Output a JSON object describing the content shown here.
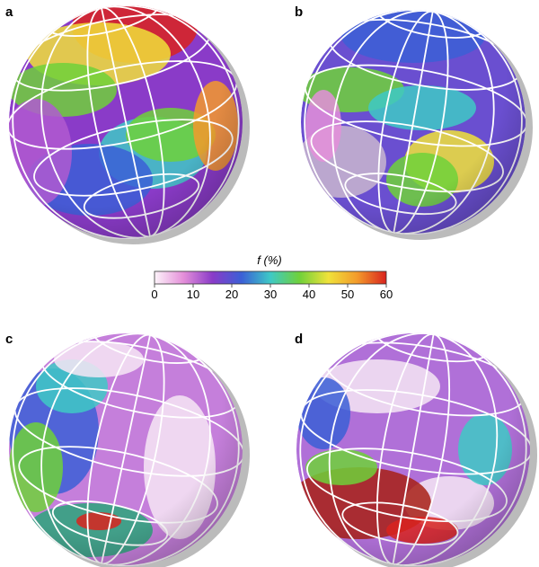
{
  "panels": [
    "a",
    "b",
    "c",
    "d"
  ],
  "colorbar": {
    "label": "f (%)",
    "range": [
      0,
      60
    ],
    "ticks": [
      0,
      10,
      20,
      30,
      40,
      50,
      60
    ],
    "colors": [
      "#fdf4fa",
      "#e48fd9",
      "#8a3bc8",
      "#3b5fd6",
      "#3ec9c6",
      "#6fd13a",
      "#f0e23a",
      "#f39a2b",
      "#d9231e"
    ]
  }
}
